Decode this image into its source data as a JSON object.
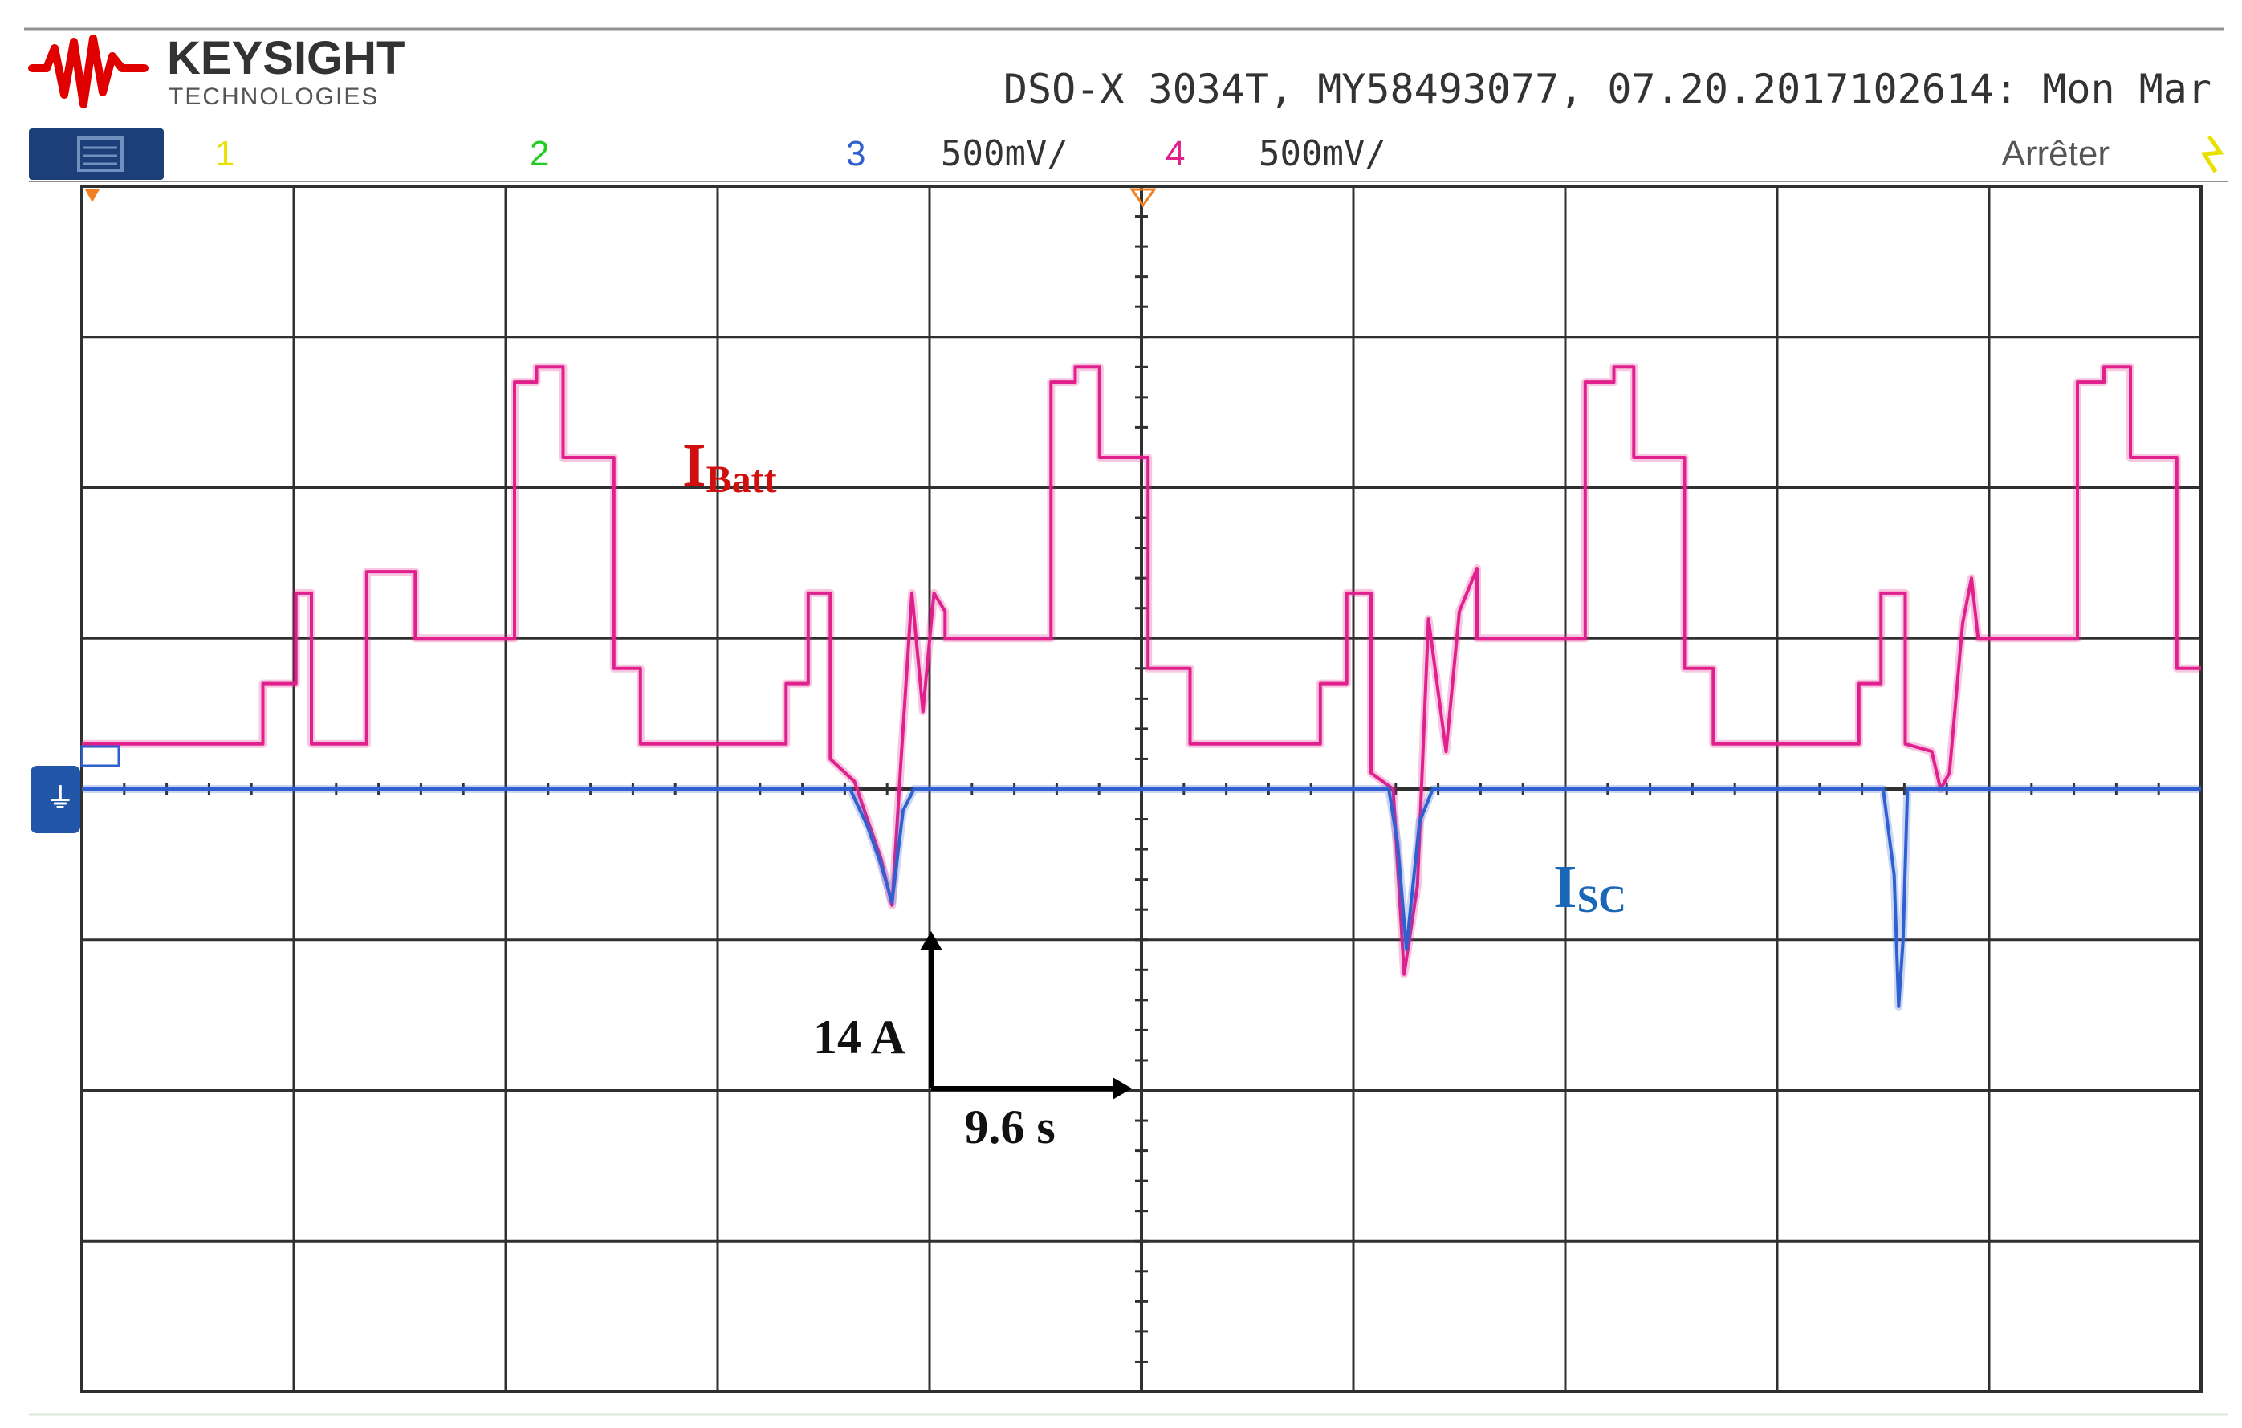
{
  "header": {
    "brand_name": "KEYSIGHT",
    "brand_sub": "TECHNOLOGIES",
    "instrument_info": "DSO-X 3034T, MY58493077, 07.20.2017102614: Mon Mar"
  },
  "channel_bar": {
    "ch1_num": "1",
    "ch2_num": "2",
    "ch3_num": "3",
    "ch3_scale": "500mV/",
    "ch4_num": "4",
    "ch4_scale": "500mV/",
    "run_status": "Arrêter"
  },
  "colors": {
    "ch1": "#e8e000",
    "ch2": "#22cc22",
    "ch3": "#3060d0",
    "ch4": "#e0208c",
    "menu_button": "#1c3f7a",
    "grid": "#303030",
    "batt_label": "#d01010",
    "sc_label": "#1a66b8"
  },
  "icons": {
    "brand_logo": "keysight-wave-logo",
    "menu": "menu-icon",
    "trigger_marker": "trigger-position-icon",
    "ground_marker": "ground-reference-icon"
  },
  "annotations": {
    "batt_label_main": "I",
    "batt_label_sub": "Batt",
    "sc_label_main": "I",
    "sc_label_sub": "SC",
    "vertical_scale": "14 A",
    "horizontal_scale": "9.6 s"
  },
  "chart_data": {
    "type": "line",
    "grid": {
      "x_divisions": 10,
      "y_divisions": 8
    },
    "scale": {
      "amps_per_div": 14,
      "seconds_per_div": 9.6
    },
    "x_unit": "s",
    "y_unit": "A",
    "xlim": [
      0,
      96
    ],
    "ylim": [
      -56,
      56
    ],
    "series": [
      {
        "name": "IBatt",
        "color": "#e0208c",
        "points": [
          [
            0,
            4.2
          ],
          [
            8.2,
            4.2
          ],
          [
            8.2,
            9.8
          ],
          [
            9.7,
            9.8
          ],
          [
            9.7,
            18.2
          ],
          [
            10.4,
            18.2
          ],
          [
            10.4,
            4.2
          ],
          [
            12.9,
            4.2
          ],
          [
            12.9,
            20.2
          ],
          [
            15.1,
            20.2
          ],
          [
            15.1,
            14
          ],
          [
            19.6,
            14
          ],
          [
            19.6,
            37.8
          ],
          [
            20.6,
            37.8
          ],
          [
            20.6,
            39.2
          ],
          [
            21.8,
            39.2
          ],
          [
            21.8,
            30.8
          ],
          [
            24.1,
            30.8
          ],
          [
            24.1,
            11.2
          ],
          [
            25.3,
            11.2
          ],
          [
            25.3,
            4.2
          ],
          [
            31.9,
            4.2
          ],
          [
            31.9,
            9.8
          ],
          [
            32.9,
            9.8
          ],
          [
            32.9,
            18.2
          ],
          [
            33.9,
            18.2
          ],
          [
            33.9,
            2.8
          ],
          [
            35,
            0.7
          ],
          [
            36.2,
            -6.5
          ],
          [
            36.7,
            -10.8
          ],
          [
            37.1,
            2.5
          ],
          [
            37.6,
            18.2
          ],
          [
            38.1,
            7.2
          ],
          [
            38.6,
            18.2
          ],
          [
            39.1,
            16.5
          ],
          [
            39.1,
            14
          ],
          [
            43.9,
            14
          ],
          [
            43.9,
            37.8
          ],
          [
            45,
            37.8
          ],
          [
            45,
            39.2
          ],
          [
            46.1,
            39.2
          ],
          [
            46.1,
            30.8
          ],
          [
            48.3,
            30.8
          ],
          [
            48.3,
            11.2
          ],
          [
            50.2,
            11.2
          ],
          [
            50.2,
            4.2
          ],
          [
            56.1,
            4.2
          ],
          [
            56.1,
            9.8
          ],
          [
            57.3,
            9.8
          ],
          [
            57.3,
            18.2
          ],
          [
            58.4,
            18.2
          ],
          [
            58.4,
            1.5
          ],
          [
            59.4,
            0
          ],
          [
            59.9,
            -17.2
          ],
          [
            60.5,
            -9
          ],
          [
            61,
            15.8
          ],
          [
            61.8,
            3.5
          ],
          [
            62.4,
            16.5
          ],
          [
            63.2,
            20.5
          ],
          [
            63.2,
            14
          ],
          [
            68.1,
            14
          ],
          [
            68.1,
            37.8
          ],
          [
            69.4,
            37.8
          ],
          [
            69.4,
            39.2
          ],
          [
            70.3,
            39.2
          ],
          [
            70.3,
            30.8
          ],
          [
            72.6,
            30.8
          ],
          [
            72.6,
            11.2
          ],
          [
            73.9,
            11.2
          ],
          [
            73.9,
            4.2
          ],
          [
            80.5,
            4.2
          ],
          [
            80.5,
            9.8
          ],
          [
            81.5,
            9.8
          ],
          [
            81.5,
            18.2
          ],
          [
            82.6,
            18.2
          ],
          [
            82.6,
            4.2
          ],
          [
            83.8,
            3.5
          ],
          [
            84.2,
            0
          ],
          [
            84.6,
            1.5
          ],
          [
            85.2,
            15.4
          ],
          [
            85.6,
            19.6
          ],
          [
            85.9,
            14
          ],
          [
            90.4,
            14
          ],
          [
            90.4,
            37.8
          ],
          [
            91.6,
            37.8
          ],
          [
            91.6,
            39.2
          ],
          [
            92.8,
            39.2
          ],
          [
            92.8,
            30.8
          ],
          [
            94.9,
            30.8
          ],
          [
            94.9,
            11.2
          ],
          [
            96,
            11.2
          ]
        ]
      },
      {
        "name": "ISC",
        "color": "#3060d0",
        "points": [
          [
            0,
            0
          ],
          [
            34.8,
            0
          ],
          [
            35.6,
            -3.5
          ],
          [
            36.2,
            -7
          ],
          [
            36.7,
            -10.5
          ],
          [
            37.2,
            -2
          ],
          [
            37.7,
            0
          ],
          [
            59.2,
            0
          ],
          [
            59.6,
            -5
          ],
          [
            60,
            -14.8
          ],
          [
            60.6,
            -3
          ],
          [
            61.2,
            0
          ],
          [
            81.6,
            0
          ],
          [
            82.1,
            -8
          ],
          [
            82.3,
            -20.2
          ],
          [
            82.5,
            -14
          ],
          [
            82.7,
            0
          ],
          [
            96,
            0
          ]
        ]
      }
    ]
  }
}
